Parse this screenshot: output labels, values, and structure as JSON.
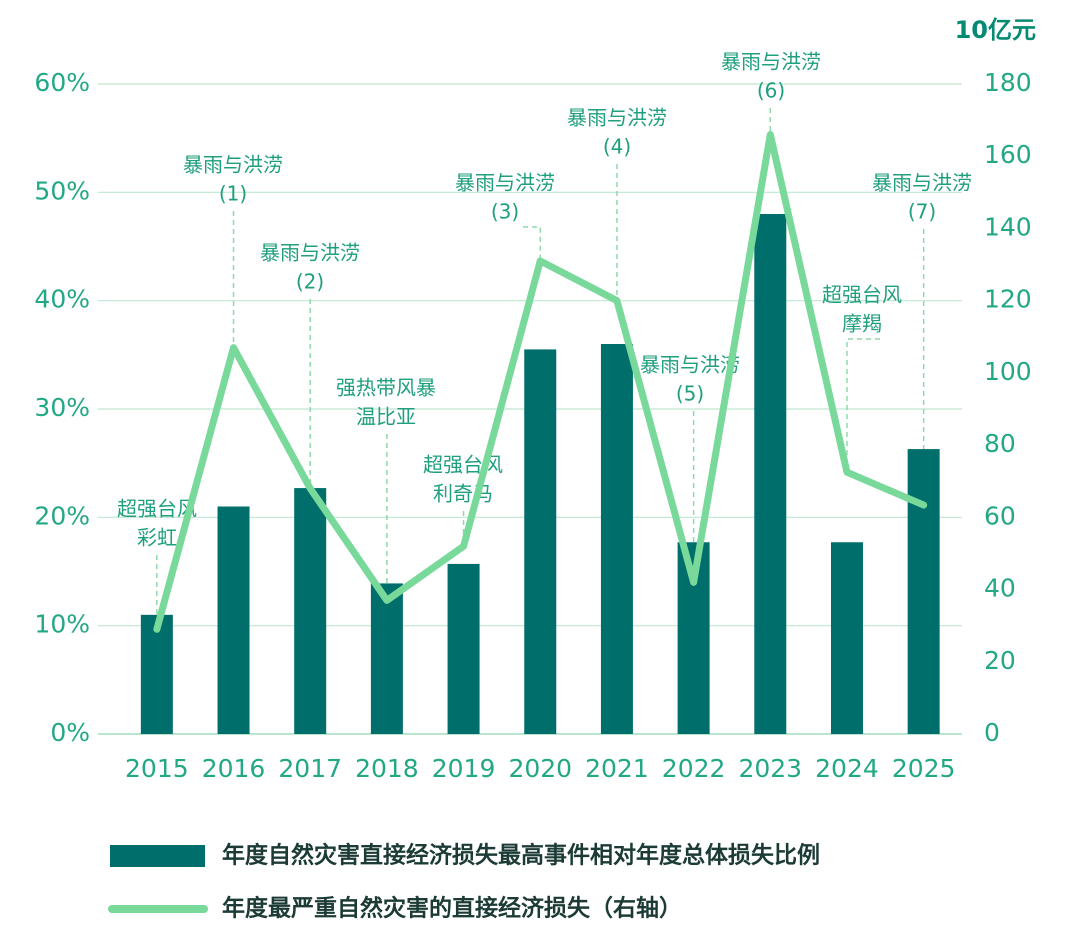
{
  "chart_data": {
    "type": "bar",
    "y2_unit": "10亿元",
    "categories": [
      "2015",
      "2016",
      "2017",
      "2018",
      "2019",
      "2020",
      "2021",
      "2022",
      "2023",
      "2024",
      "2025"
    ],
    "series": [
      {
        "name": "年度自然灾害直接经济损失最高事件相对年度总体损失比例",
        "type": "bar",
        "color": "#006e6b",
        "values": [
          11,
          21,
          22.7,
          13.9,
          15.7,
          35.5,
          36,
          17.7,
          48,
          17.7,
          26.3
        ]
      },
      {
        "name": "年度最严重自然灾害的直接经济损失（右轴）",
        "type": "line",
        "color": "#78d99a",
        "axis": "y2",
        "values": [
          29,
          107,
          68,
          37,
          52,
          131,
          120,
          42,
          166,
          72.5,
          63.4
        ]
      }
    ],
    "annotations": [
      [
        "超强台风",
        "彩虹"
      ],
      [
        "暴雨与洪涝",
        "(1)"
      ],
      [
        "暴雨与洪涝",
        "(2)"
      ],
      [
        "强热带风暴",
        "温比亚"
      ],
      [
        "超强台风",
        "利奇马"
      ],
      [
        "暴雨与洪涝",
        "(3)"
      ],
      [
        "暴雨与洪涝",
        "(4)"
      ],
      [
        "暴雨与洪涝",
        "(5)"
      ],
      [
        "暴雨与洪涝",
        "(6)"
      ],
      [
        "超强台风",
        "摩羯"
      ],
      [
        "暴雨与洪涝",
        "(7)"
      ]
    ],
    "ylim": [
      0,
      60
    ],
    "yticks": [
      {
        "value": 0,
        "label": "0%"
      },
      {
        "value": 10,
        "label": "10%"
      },
      {
        "value": 20,
        "label": "20%"
      },
      {
        "value": 30,
        "label": "30%"
      },
      {
        "value": 40,
        "label": "40%"
      },
      {
        "value": 50,
        "label": "50%"
      },
      {
        "value": 60,
        "label": "60%"
      }
    ],
    "y2lim": [
      0,
      180
    ],
    "y2ticks": [
      0,
      20,
      40,
      60,
      80,
      100,
      120,
      140,
      160,
      180
    ],
    "grid": true
  }
}
